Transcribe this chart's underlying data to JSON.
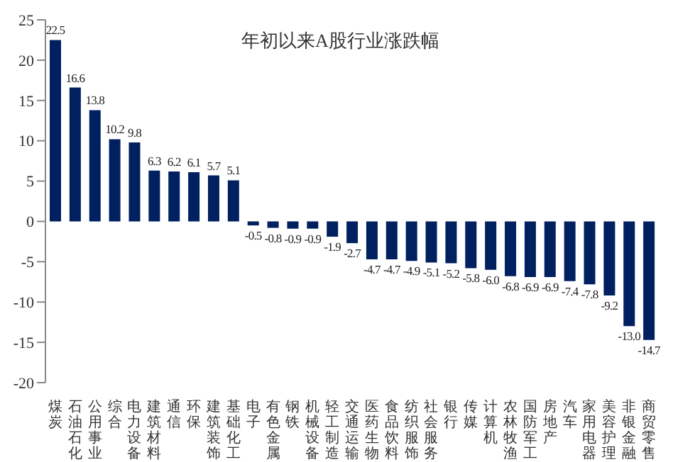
{
  "chart_data": {
    "type": "bar",
    "title": "年初以来A股行业涨跌幅",
    "categories": [
      "煤炭",
      "石油石化",
      "公用事业",
      "综合",
      "电力设备",
      "建筑材料",
      "通信",
      "环保",
      "建筑装饰",
      "基础化工",
      "电子",
      "有色金属",
      "钢铁",
      "机械设备",
      "轻工制造",
      "交通运输",
      "医药生物",
      "食品饮料",
      "纺织服饰",
      "社会服务",
      "银行",
      "传媒",
      "计算机",
      "农林牧渔",
      "国防军工",
      "房地产",
      "汽车",
      "家用电器",
      "美容护理",
      "非银金融",
      "商贸零售"
    ],
    "values": [
      22.5,
      16.6,
      13.8,
      10.2,
      9.8,
      6.3,
      6.2,
      6.1,
      5.7,
      5.1,
      -0.5,
      -0.8,
      -0.9,
      -0.9,
      -1.9,
      -2.7,
      -4.7,
      -4.7,
      -4.9,
      -5.1,
      -5.2,
      -5.8,
      -6.0,
      -6.8,
      -6.9,
      -6.9,
      -7.4,
      -7.8,
      -9.2,
      -13.0,
      -14.7
    ],
    "value_labels": [
      "22.5",
      "16.6",
      "13.8",
      "10.2",
      "9.8",
      "6.3",
      "6.2",
      "6.1",
      "5.7",
      "5.1",
      "-0.5",
      "-0.8",
      "-0.9",
      "-0.9",
      "-1.9",
      "-2.7",
      "-4.7",
      "-4.7",
      "-4.9",
      "-5.1",
      "-5.2",
      "-5.8",
      "-6.0",
      "-6.8",
      "-6.9",
      "-6.9",
      "-7.4",
      "-7.8",
      "-9.2",
      "-13.0",
      "-14.7"
    ],
    "color": "#002060",
    "ylim": [
      -20,
      25
    ],
    "yticks": [
      -20,
      -15,
      -10,
      -5,
      0,
      5,
      10,
      15,
      20,
      25
    ],
    "grid": false,
    "legend": false
  }
}
